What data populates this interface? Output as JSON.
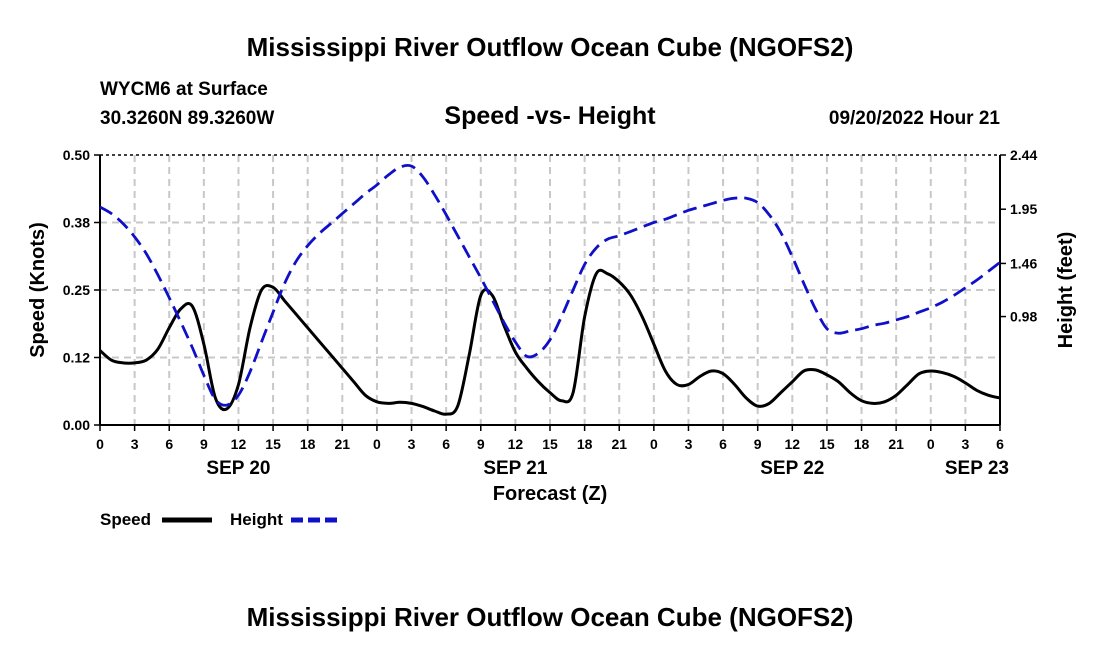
{
  "chart_data": {
    "type": "line",
    "title": "Mississippi River Outflow Ocean Cube (NGOFS2)",
    "footer_title": "Mississippi River Outflow Ocean Cube (NGOFS2)",
    "station": "WYCM6 at Surface",
    "coordinates": "30.3260N  89.3260W",
    "subtitle": "Speed -vs- Height",
    "datetime": "09/20/2022 Hour 21",
    "xlabel": "Forecast (Z)",
    "ylabel": "Speed (Knots)",
    "y2label": "Height (feet)",
    "x_range_hours": [
      0,
      78
    ],
    "x_ticks": [
      {
        "h": 0,
        "label": "0"
      },
      {
        "h": 3,
        "label": "3"
      },
      {
        "h": 6,
        "label": "6"
      },
      {
        "h": 9,
        "label": "9"
      },
      {
        "h": 12,
        "label": "12"
      },
      {
        "h": 15,
        "label": "15"
      },
      {
        "h": 18,
        "label": "18"
      },
      {
        "h": 21,
        "label": "21"
      },
      {
        "h": 24,
        "label": "0"
      },
      {
        "h": 27,
        "label": "3"
      },
      {
        "h": 30,
        "label": "6"
      },
      {
        "h": 33,
        "label": "9"
      },
      {
        "h": 36,
        "label": "12"
      },
      {
        "h": 39,
        "label": "15"
      },
      {
        "h": 42,
        "label": "18"
      },
      {
        "h": 45,
        "label": "21"
      },
      {
        "h": 48,
        "label": "0"
      },
      {
        "h": 51,
        "label": "3"
      },
      {
        "h": 54,
        "label": "6"
      },
      {
        "h": 57,
        "label": "9"
      },
      {
        "h": 60,
        "label": "12"
      },
      {
        "h": 63,
        "label": "15"
      },
      {
        "h": 66,
        "label": "18"
      },
      {
        "h": 69,
        "label": "21"
      },
      {
        "h": 72,
        "label": "0"
      },
      {
        "h": 75,
        "label": "3"
      },
      {
        "h": 78,
        "label": "6"
      }
    ],
    "date_labels": [
      {
        "h": 12,
        "label": "SEP 20"
      },
      {
        "h": 36,
        "label": "SEP 21"
      },
      {
        "h": 60,
        "label": "SEP 22"
      },
      {
        "h": 76,
        "label": "SEP 23"
      }
    ],
    "ylim": [
      0,
      0.5
    ],
    "y_ticks": [
      {
        "v": 0.0,
        "label": "0.00"
      },
      {
        "v": 0.125,
        "label": "0.12"
      },
      {
        "v": 0.25,
        "label": "0.25"
      },
      {
        "v": 0.375,
        "label": "0.38"
      },
      {
        "v": 0.5,
        "label": "0.50"
      }
    ],
    "y2lim": [
      0.0,
      2.44
    ],
    "y2_ticks": [
      {
        "v": 0.98,
        "label": "0.98"
      },
      {
        "v": 1.46,
        "label": "1.46"
      },
      {
        "v": 1.95,
        "label": "1.95"
      },
      {
        "v": 2.44,
        "label": "2.44"
      }
    ],
    "grid": true,
    "legend": [
      {
        "name": "Speed",
        "color": "#000000",
        "style": "solid"
      },
      {
        "name": "Height",
        "color": "#1010c8",
        "style": "dashed"
      }
    ],
    "series": [
      {
        "name": "Speed",
        "axis": "left",
        "color": "#000000",
        "style": "solid",
        "x": [
          0,
          1,
          2,
          3,
          4,
          5,
          6,
          7,
          8,
          9,
          10,
          11,
          12,
          13,
          14,
          15,
          16,
          17,
          18,
          19,
          20,
          21,
          22,
          23,
          24,
          25,
          26,
          27,
          28,
          29,
          30,
          31,
          32,
          33,
          34,
          35,
          36,
          37,
          38,
          39,
          40,
          41,
          42,
          43,
          44,
          45,
          46,
          47,
          48,
          49,
          50,
          51,
          52,
          53,
          54,
          55,
          56,
          57,
          58,
          59,
          60,
          61,
          62,
          63,
          64,
          65,
          66,
          67,
          68,
          69,
          70,
          71,
          72,
          73,
          74,
          75,
          76,
          77,
          78
        ],
        "y": [
          0.138,
          0.12,
          0.115,
          0.115,
          0.12,
          0.14,
          0.18,
          0.215,
          0.22,
          0.15,
          0.05,
          0.03,
          0.075,
          0.18,
          0.25,
          0.255,
          0.23,
          0.205,
          0.18,
          0.155,
          0.13,
          0.105,
          0.08,
          0.055,
          0.043,
          0.04,
          0.042,
          0.04,
          0.034,
          0.026,
          0.02,
          0.035,
          0.13,
          0.24,
          0.24,
          0.185,
          0.135,
          0.105,
          0.08,
          0.06,
          0.045,
          0.06,
          0.2,
          0.28,
          0.28,
          0.265,
          0.24,
          0.2,
          0.15,
          0.1,
          0.075,
          0.075,
          0.09,
          0.1,
          0.095,
          0.075,
          0.05,
          0.035,
          0.04,
          0.06,
          0.08,
          0.1,
          0.102,
          0.093,
          0.08,
          0.06,
          0.045,
          0.04,
          0.043,
          0.055,
          0.075,
          0.095,
          0.1,
          0.097,
          0.09,
          0.078,
          0.064,
          0.055,
          0.05
        ]
      },
      {
        "name": "Height",
        "axis": "right",
        "color": "#1010c8",
        "style": "dashed",
        "x": [
          0,
          1,
          2,
          3,
          4,
          5,
          6,
          7,
          8,
          9,
          10,
          11,
          12,
          13,
          14,
          15,
          16,
          17,
          18,
          19,
          20,
          21,
          22,
          23,
          24,
          25,
          26,
          27,
          28,
          29,
          30,
          31,
          32,
          33,
          34,
          35,
          36,
          37,
          38,
          39,
          40,
          41,
          42,
          43,
          44,
          45,
          46,
          47,
          48,
          49,
          50,
          51,
          52,
          53,
          54,
          55,
          56,
          57,
          58,
          59,
          60,
          61,
          62,
          63,
          64,
          65,
          66,
          67,
          68,
          69,
          70,
          71,
          72,
          73,
          74,
          75,
          76,
          77,
          78
        ],
        "y": [
          1.97,
          1.91,
          1.82,
          1.7,
          1.55,
          1.36,
          1.15,
          0.93,
          0.7,
          0.45,
          0.23,
          0.18,
          0.27,
          0.48,
          0.75,
          1.02,
          1.28,
          1.48,
          1.62,
          1.73,
          1.82,
          1.91,
          2.0,
          2.09,
          2.17,
          2.26,
          2.33,
          2.34,
          2.24,
          2.08,
          1.9,
          1.71,
          1.52,
          1.33,
          1.13,
          0.93,
          0.75,
          0.62,
          0.65,
          0.77,
          0.98,
          1.22,
          1.45,
          1.6,
          1.68,
          1.71,
          1.75,
          1.79,
          1.83,
          1.86,
          1.9,
          1.94,
          1.97,
          2.0,
          2.03,
          2.05,
          2.05,
          2.01,
          1.9,
          1.74,
          1.52,
          1.28,
          1.05,
          0.87,
          0.83,
          0.85,
          0.87,
          0.9,
          0.92,
          0.95,
          0.98,
          1.02,
          1.06,
          1.11,
          1.17,
          1.24,
          1.31,
          1.39,
          1.47
        ]
      }
    ]
  }
}
